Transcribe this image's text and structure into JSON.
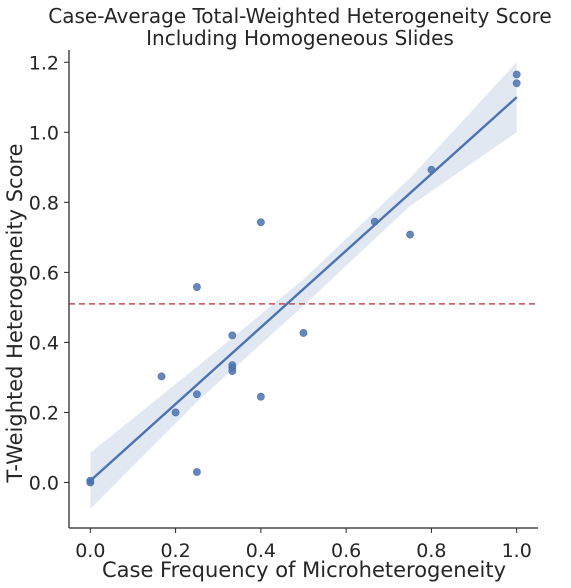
{
  "chart_data": {
    "type": "scatter",
    "title": "Case-Average Total-Weighted Heterogeneity Score",
    "subtitle": "Including Homogeneous Slides",
    "xlabel": "Case Frequency of Microheterogeneity",
    "ylabel": "T-Weighted Heterogeneity Score",
    "xlim": [
      -0.05,
      1.05
    ],
    "ylim": [
      -0.13,
      1.235
    ],
    "x_ticks": [
      0.0,
      0.2,
      0.4,
      0.6,
      0.8,
      1.0
    ],
    "x_tick_labels": [
      "0.0",
      "0.2",
      "0.4",
      "0.6",
      "0.8",
      "1.0"
    ],
    "y_ticks": [
      0.0,
      0.2,
      0.4,
      0.6,
      0.8,
      1.0,
      1.2
    ],
    "y_tick_labels": [
      "0.0",
      "0.2",
      "0.4",
      "0.6",
      "0.8",
      "1.0",
      "1.2"
    ],
    "grid": false,
    "colors": {
      "points": "#4c72b0",
      "fit": "#4c72b0",
      "ci": "#4c72b0",
      "reference": "#c44e52"
    },
    "points": [
      {
        "x": 0.0,
        "y": 0.0
      },
      {
        "x": 0.0,
        "y": 0.005
      },
      {
        "x": 0.167,
        "y": 0.303
      },
      {
        "x": 0.2,
        "y": 0.2
      },
      {
        "x": 0.25,
        "y": 0.03
      },
      {
        "x": 0.25,
        "y": 0.252
      },
      {
        "x": 0.25,
        "y": 0.558
      },
      {
        "x": 0.333,
        "y": 0.318
      },
      {
        "x": 0.333,
        "y": 0.328
      },
      {
        "x": 0.333,
        "y": 0.335
      },
      {
        "x": 0.333,
        "y": 0.42
      },
      {
        "x": 0.4,
        "y": 0.245
      },
      {
        "x": 0.4,
        "y": 0.743
      },
      {
        "x": 0.5,
        "y": 0.427
      },
      {
        "x": 0.667,
        "y": 0.745
      },
      {
        "x": 0.75,
        "y": 0.708
      },
      {
        "x": 0.8,
        "y": 0.893
      },
      {
        "x": 1.0,
        "y": 1.14
      },
      {
        "x": 1.0,
        "y": 1.165
      }
    ],
    "regression": {
      "x": [
        0.0,
        1.0
      ],
      "y": [
        0.005,
        1.1
      ]
    },
    "confidence_band": {
      "x": [
        0.0,
        0.25,
        0.5,
        0.75,
        1.0
      ],
      "lower": [
        -0.075,
        0.23,
        0.505,
        0.79,
        1.0
      ],
      "upper": [
        0.085,
        0.33,
        0.58,
        0.87,
        1.2
      ]
    },
    "reference_line": {
      "y": 0.51,
      "style": "dashed"
    }
  }
}
